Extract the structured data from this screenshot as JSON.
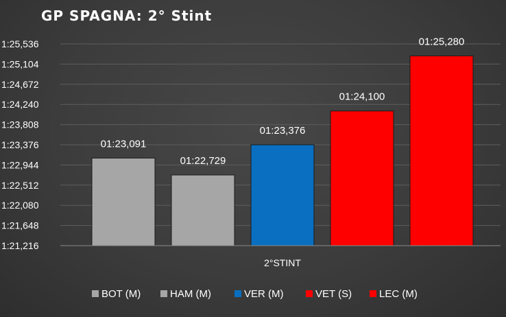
{
  "chart_data": {
    "type": "bar",
    "title": "GP SPAGNA: 2° Stint",
    "categories": [
      "2°STINT"
    ],
    "series": [
      {
        "name": "BOT (M)",
        "value_seconds": 83.091,
        "label": "01:23,091",
        "color": "#a6a6a6"
      },
      {
        "name": "HAM (M)",
        "value_seconds": 82.729,
        "label": "01:22,729",
        "color": "#a6a6a6"
      },
      {
        "name": "VER (M)",
        "value_seconds": 83.376,
        "label": "01:23,376",
        "color": "#0a6fc0"
      },
      {
        "name": "VET (S)",
        "value_seconds": 84.1,
        "label": "01:24,100",
        "color": "#ff0000"
      },
      {
        "name": "LEC (M)",
        "value_seconds": 85.28,
        "label": "01:25,280",
        "color": "#ff0000"
      }
    ],
    "y_ticks": [
      {
        "value": 81.216,
        "label": "1:21,216"
      },
      {
        "value": 81.648,
        "label": "1:21,648"
      },
      {
        "value": 82.08,
        "label": "1:22,080"
      },
      {
        "value": 82.512,
        "label": "1:22,512"
      },
      {
        "value": 82.944,
        "label": "1:22,944"
      },
      {
        "value": 83.376,
        "label": "1:23,376"
      },
      {
        "value": 83.808,
        "label": "1:23,808"
      },
      {
        "value": 84.24,
        "label": "1:24,240"
      },
      {
        "value": 84.672,
        "label": "1:24,672"
      },
      {
        "value": 85.104,
        "label": "1:25,104"
      },
      {
        "value": 85.536,
        "label": "1:25,536"
      }
    ],
    "ylim": [
      81.216,
      85.536
    ],
    "grid": true,
    "legend": "bottom",
    "xlabel": "",
    "ylabel": ""
  }
}
